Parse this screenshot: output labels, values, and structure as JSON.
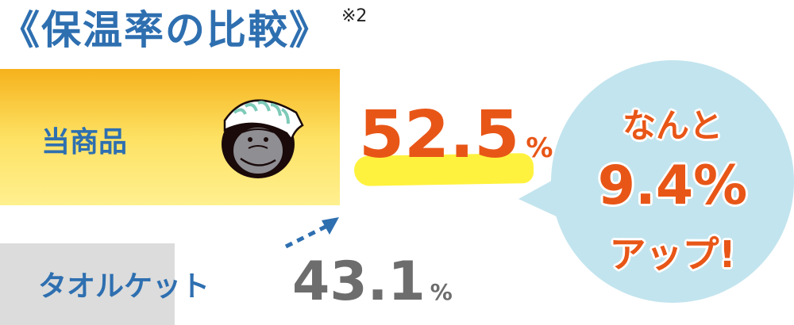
{
  "title": "《保温率の比較》",
  "footnote": "※2",
  "chart_data": {
    "type": "bar",
    "orientation": "horizontal",
    "title": "《保温率の比較》",
    "categories": [
      "当商品",
      "タオルケット"
    ],
    "values": [
      52.5,
      43.1
    ],
    "value_labels": [
      "52.5",
      "43.1"
    ],
    "unit": "%",
    "colors": [
      "#f8c53a",
      "#dcdcdc"
    ],
    "value_colors": [
      "#e85617",
      "#6d6d6d"
    ],
    "annotation": {
      "lines": [
        "なんと",
        "9.4%",
        "アップ!"
      ],
      "bubble_color": "#c2e4ee",
      "text_color": "#e85617"
    },
    "icons": [
      "gorilla-face-icon",
      "dashed-arrow-icon"
    ]
  }
}
